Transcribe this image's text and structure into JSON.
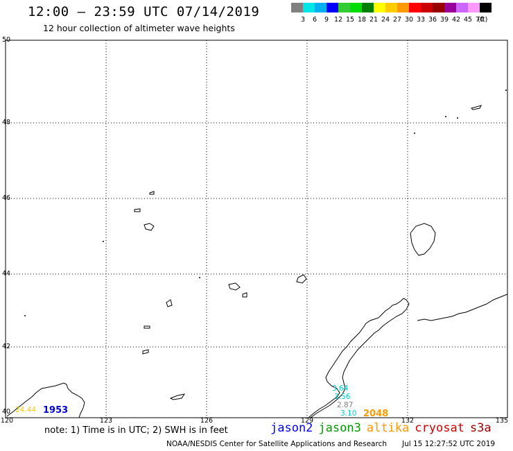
{
  "header": {
    "title": "12:00 – 23:59 UTC 07/14/2019",
    "subtitle": "12 hour collection of altimeter wave heights"
  },
  "colorbar": {
    "colors": [
      "#808080",
      "#00e6e6",
      "#00b0f0",
      "#0000ff",
      "#33cc33",
      "#00dd00",
      "#008000",
      "#ffff00",
      "#ffcc00",
      "#ff9900",
      "#ff0000",
      "#cc0000",
      "#990000",
      "#990099",
      "#cc66ff",
      "#ff99ff",
      "#000000"
    ],
    "labels": [
      "3",
      "6",
      "9",
      "12",
      "15",
      "18",
      "21",
      "24",
      "27",
      "30",
      "33",
      "36",
      "39",
      "42",
      "45",
      "70"
    ],
    "unit": "(ft)"
  },
  "map": {
    "lat_labels": [
      "50",
      "48",
      "46",
      "44",
      "42",
      "40"
    ],
    "lon_labels": [
      "120",
      "123",
      "126",
      "129",
      "132",
      "135"
    ]
  },
  "observations": [
    {
      "value": "3.64",
      "color": "#00cccc"
    },
    {
      "value": "3.56",
      "color": "#00cccc"
    },
    {
      "value": "2.87",
      "color": "#808080"
    },
    {
      "value": "3.10",
      "color": "#00cccc"
    },
    {
      "value": "24.44",
      "color": "#ffcc00"
    }
  ],
  "passes": [
    {
      "value": "1953",
      "color": "#0000cc"
    },
    {
      "value": "2048",
      "color": "#ff9900"
    }
  ],
  "footer": {
    "note": "note: 1) Time is in UTC; 2) SWH is in feet",
    "satellites": [
      {
        "name": "jason2",
        "color": "#0000ff"
      },
      {
        "name": "jason3",
        "color": "#009900"
      },
      {
        "name": "altika",
        "color": "#ff9900"
      },
      {
        "name": "cryosat",
        "color": "#cc0000"
      },
      {
        "name": "s3a",
        "color": "#990000"
      }
    ],
    "credit": "NOAA/NESDIS Center for Satellite Applications and Research",
    "timestamp": "Jul 15 12:27:52 UTC 2019"
  }
}
